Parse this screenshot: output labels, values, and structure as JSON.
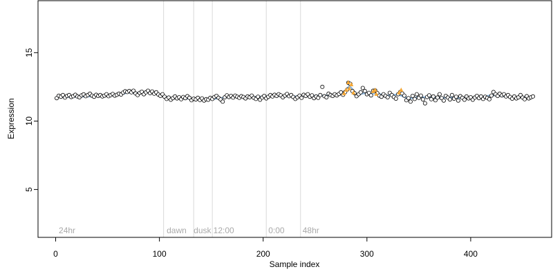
{
  "chart_data": {
    "type": "scatter",
    "xlabel": "Sample index",
    "ylabel": "Expression",
    "xlim": [
      -17,
      478
    ],
    "ylim": [
      1.5,
      18.8
    ],
    "x_ticks": [
      0,
      100,
      200,
      300,
      400
    ],
    "y_ticks": [
      5,
      10,
      15
    ],
    "grid": false,
    "region_lines": [
      104,
      133,
      151,
      203,
      236
    ],
    "region_labels": [
      {
        "x": 3,
        "text": "24hr"
      },
      {
        "x": 107,
        "text": "dawn"
      },
      {
        "x": 133,
        "text": "dusk"
      },
      {
        "x": 152,
        "text": "12:00"
      },
      {
        "x": 205,
        "text": "0:00"
      },
      {
        "x": 238,
        "text": "48hr"
      }
    ],
    "points": [
      [
        1,
        11.68
      ],
      [
        3,
        11.85
      ],
      [
        5,
        11.78
      ],
      [
        7,
        11.9
      ],
      [
        9,
        11.72
      ],
      [
        11,
        11.84
      ],
      [
        13,
        11.9
      ],
      [
        15,
        11.76
      ],
      [
        17,
        11.82
      ],
      [
        19,
        11.92
      ],
      [
        21,
        11.8
      ],
      [
        23,
        11.74
      ],
      [
        25,
        11.88
      ],
      [
        27,
        11.95
      ],
      [
        29,
        11.82
      ],
      [
        31,
        11.9
      ],
      [
        33,
        12.0
      ],
      [
        35,
        11.86
      ],
      [
        37,
        11.78
      ],
      [
        39,
        11.92
      ],
      [
        41,
        11.84
      ],
      [
        43,
        11.9
      ],
      [
        45,
        11.8
      ],
      [
        47,
        11.86
      ],
      [
        49,
        11.96
      ],
      [
        51,
        11.82
      ],
      [
        53,
        11.9
      ],
      [
        55,
        11.98
      ],
      [
        57,
        11.86
      ],
      [
        59,
        11.92
      ],
      [
        61,
        12.0
      ],
      [
        63,
        11.94
      ],
      [
        65,
        12.08
      ],
      [
        67,
        12.18
      ],
      [
        69,
        12.12
      ],
      [
        71,
        12.2
      ],
      [
        73,
        12.1
      ],
      [
        75,
        12.22
      ],
      [
        77,
        12.02
      ],
      [
        79,
        11.9
      ],
      [
        81,
        12.06
      ],
      [
        83,
        12.14
      ],
      [
        85,
        11.96
      ],
      [
        87,
        12.1
      ],
      [
        89,
        12.22
      ],
      [
        91,
        12.04
      ],
      [
        93,
        12.16
      ],
      [
        95,
        12.0
      ],
      [
        97,
        12.1
      ],
      [
        99,
        11.94
      ],
      [
        101,
        11.84
      ],
      [
        103,
        11.96
      ],
      [
        105,
        11.78
      ],
      [
        107,
        11.62
      ],
      [
        109,
        11.72
      ],
      [
        111,
        11.56
      ],
      [
        113,
        11.68
      ],
      [
        115,
        11.8
      ],
      [
        117,
        11.66
      ],
      [
        119,
        11.74
      ],
      [
        121,
        11.6
      ],
      [
        123,
        11.76
      ],
      [
        125,
        11.68
      ],
      [
        127,
        11.82
      ],
      [
        129,
        11.7
      ],
      [
        131,
        11.52
      ],
      [
        133,
        11.64
      ],
      [
        135,
        11.58
      ],
      [
        137,
        11.7
      ],
      [
        139,
        11.54
      ],
      [
        141,
        11.66
      ],
      [
        143,
        11.5
      ],
      [
        145,
        11.6
      ],
      [
        147,
        11.56
      ],
      [
        149,
        11.7
      ],
      [
        151,
        11.62
      ],
      [
        153,
        11.76
      ],
      [
        155,
        11.84
      ],
      [
        157,
        11.7
      ],
      [
        159,
        11.58
      ],
      [
        161,
        11.42
      ],
      [
        163,
        11.74
      ],
      [
        165,
        11.88
      ],
      [
        167,
        11.76
      ],
      [
        169,
        11.84
      ],
      [
        171,
        11.72
      ],
      [
        173,
        11.86
      ],
      [
        175,
        11.78
      ],
      [
        177,
        11.7
      ],
      [
        179,
        11.82
      ],
      [
        181,
        11.76
      ],
      [
        183,
        11.66
      ],
      [
        185,
        11.8
      ],
      [
        187,
        11.74
      ],
      [
        189,
        11.86
      ],
      [
        191,
        11.7
      ],
      [
        193,
        11.62
      ],
      [
        195,
        11.78
      ],
      [
        197,
        11.56
      ],
      [
        199,
        11.72
      ],
      [
        201,
        11.84
      ],
      [
        203,
        11.66
      ],
      [
        205,
        11.78
      ],
      [
        207,
        11.9
      ],
      [
        209,
        11.8
      ],
      [
        211,
        11.92
      ],
      [
        213,
        11.84
      ],
      [
        215,
        11.96
      ],
      [
        217,
        11.88
      ],
      [
        219,
        11.74
      ],
      [
        221,
        11.86
      ],
      [
        223,
        11.98
      ],
      [
        225,
        11.82
      ],
      [
        227,
        11.9
      ],
      [
        229,
        11.76
      ],
      [
        231,
        11.62
      ],
      [
        233,
        11.74
      ],
      [
        235,
        11.86
      ],
      [
        237,
        11.7
      ],
      [
        239,
        11.92
      ],
      [
        241,
        11.84
      ],
      [
        243,
        11.96
      ],
      [
        245,
        11.78
      ],
      [
        247,
        11.88
      ],
      [
        249,
        11.68
      ],
      [
        251,
        11.8
      ],
      [
        253,
        11.7
      ],
      [
        255,
        11.9
      ],
      [
        257,
        12.5
      ],
      [
        259,
        11.82
      ],
      [
        261,
        11.74
      ],
      [
        263,
        12.0
      ],
      [
        265,
        11.9
      ],
      [
        267,
        11.84
      ],
      [
        269,
        11.96
      ],
      [
        271,
        11.88
      ],
      [
        273,
        11.98
      ],
      [
        275,
        12.1
      ],
      [
        277,
        11.92
      ],
      [
        279,
        12.12
      ],
      [
        281,
        12.3
      ],
      [
        282,
        12.8
      ],
      [
        284,
        12.72
      ],
      [
        286,
        12.2
      ],
      [
        288,
        12.04
      ],
      [
        290,
        11.82
      ],
      [
        292,
        11.96
      ],
      [
        294,
        12.1
      ],
      [
        296,
        12.42
      ],
      [
        298,
        12.2
      ],
      [
        300,
        11.96
      ],
      [
        302,
        12.06
      ],
      [
        304,
        11.88
      ],
      [
        306,
        12.22
      ],
      [
        308,
        12.24
      ],
      [
        310,
        12.04
      ],
      [
        312,
        11.86
      ],
      [
        314,
        11.78
      ],
      [
        316,
        11.96
      ],
      [
        318,
        11.84
      ],
      [
        320,
        11.74
      ],
      [
        322,
        12.06
      ],
      [
        324,
        11.9
      ],
      [
        326,
        11.76
      ],
      [
        328,
        11.64
      ],
      [
        330,
        11.96
      ],
      [
        332,
        12.12
      ],
      [
        334,
        12.02
      ],
      [
        336,
        11.86
      ],
      [
        338,
        11.52
      ],
      [
        340,
        11.68
      ],
      [
        342,
        11.42
      ],
      [
        344,
        11.84
      ],
      [
        346,
        11.62
      ],
      [
        348,
        11.96
      ],
      [
        350,
        11.7
      ],
      [
        352,
        11.86
      ],
      [
        354,
        11.58
      ],
      [
        356,
        11.3
      ],
      [
        358,
        11.76
      ],
      [
        360,
        11.88
      ],
      [
        362,
        11.6
      ],
      [
        364,
        11.8
      ],
      [
        366,
        11.52
      ],
      [
        368,
        11.72
      ],
      [
        370,
        11.96
      ],
      [
        372,
        11.68
      ],
      [
        374,
        11.5
      ],
      [
        376,
        11.84
      ],
      [
        378,
        11.72
      ],
      [
        380,
        11.58
      ],
      [
        382,
        11.9
      ],
      [
        384,
        11.64
      ],
      [
        386,
        11.78
      ],
      [
        388,
        11.5
      ],
      [
        390,
        11.82
      ],
      [
        392,
        11.7
      ],
      [
        394,
        11.56
      ],
      [
        396,
        11.8
      ],
      [
        398,
        11.66
      ],
      [
        400,
        11.74
      ],
      [
        402,
        11.56
      ],
      [
        404,
        11.72
      ],
      [
        406,
        11.84
      ],
      [
        408,
        11.68
      ],
      [
        410,
        11.8
      ],
      [
        412,
        11.62
      ],
      [
        414,
        11.78
      ],
      [
        416,
        11.7
      ],
      [
        418,
        11.6
      ],
      [
        420,
        11.86
      ],
      [
        422,
        12.12
      ],
      [
        424,
        11.96
      ],
      [
        426,
        11.84
      ],
      [
        428,
        12.0
      ],
      [
        430,
        11.88
      ],
      [
        432,
        11.96
      ],
      [
        434,
        11.8
      ],
      [
        436,
        11.9
      ],
      [
        438,
        11.76
      ],
      [
        440,
        11.64
      ],
      [
        442,
        11.8
      ],
      [
        444,
        11.66
      ],
      [
        446,
        11.74
      ],
      [
        448,
        11.9
      ],
      [
        450,
        11.72
      ],
      [
        452,
        11.6
      ],
      [
        454,
        11.82
      ],
      [
        456,
        11.66
      ],
      [
        458,
        11.74
      ],
      [
        460,
        11.8
      ]
    ],
    "orange_points": [
      [
        278,
        12.05
      ],
      [
        280,
        12.3
      ],
      [
        282,
        12.85
      ],
      [
        283,
        12.4
      ],
      [
        285,
        12.7
      ],
      [
        287,
        12.1
      ],
      [
        306,
        12.2
      ],
      [
        308,
        12.3
      ],
      [
        309,
        12.0
      ],
      [
        331,
        12.1
      ],
      [
        333,
        12.3
      ]
    ],
    "line": [
      [
        1,
        11.75
      ],
      [
        20,
        11.78
      ],
      [
        40,
        11.82
      ],
      [
        60,
        11.9
      ],
      [
        70,
        12.08
      ],
      [
        80,
        12.05
      ],
      [
        90,
        12.1
      ],
      [
        100,
        11.95
      ],
      [
        110,
        11.68
      ],
      [
        130,
        11.64
      ],
      [
        150,
        11.6
      ],
      [
        170,
        11.78
      ],
      [
        190,
        11.75
      ],
      [
        210,
        11.85
      ],
      [
        230,
        11.8
      ],
      [
        250,
        11.84
      ],
      [
        270,
        11.9
      ],
      [
        280,
        12.2
      ],
      [
        283,
        12.6
      ],
      [
        290,
        11.95
      ],
      [
        300,
        12.05
      ],
      [
        310,
        12.0
      ],
      [
        320,
        11.85
      ],
      [
        330,
        11.95
      ],
      [
        340,
        11.65
      ],
      [
        350,
        11.75
      ],
      [
        370,
        11.72
      ],
      [
        390,
        11.7
      ],
      [
        410,
        11.72
      ],
      [
        420,
        11.9
      ],
      [
        440,
        11.75
      ],
      [
        460,
        11.75
      ]
    ],
    "colors": {
      "point_fill": "#ffffff",
      "point_stroke": "#000000",
      "line": "#8fb8de",
      "highlight": "#f4a736",
      "region_line": "#d9d9d9",
      "region_text": "#a9a9a9"
    }
  }
}
